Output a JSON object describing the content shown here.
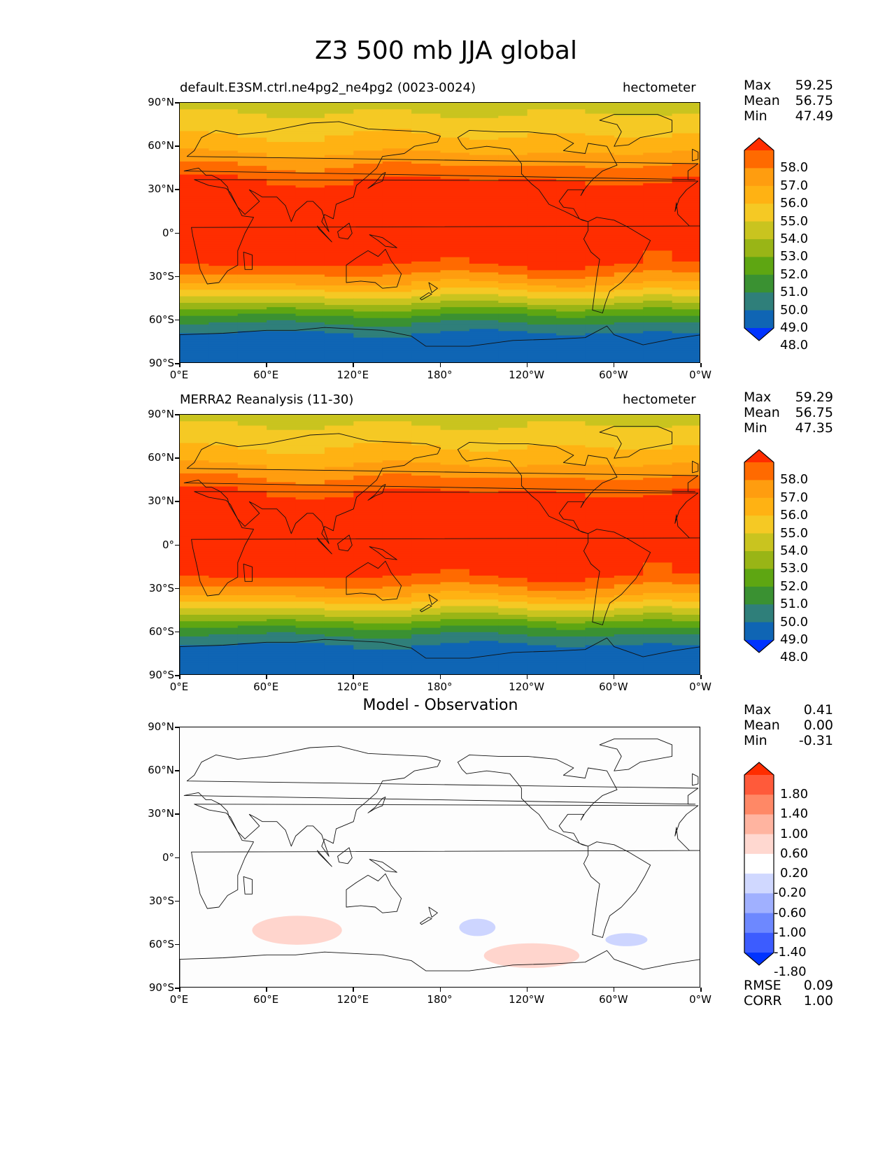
{
  "title": "Z3 500 mb JJA global",
  "lat_labels": [
    "90°N",
    "60°N",
    "30°N",
    "0°",
    "30°S",
    "60°S",
    "90°S"
  ],
  "lon_labels": [
    "0°E",
    "60°E",
    "120°E",
    "180°",
    "120°W",
    "60°W",
    "0°W"
  ],
  "panels": [
    {
      "title_left": "default.E3SM.ctrl.ne4pg2_ne4pg2 (0023-0024)",
      "title_right": "hectometer",
      "title_center": "",
      "stats": [
        {
          "label": "Max",
          "value": "59.25"
        },
        {
          "label": "Mean",
          "value": "56.75"
        },
        {
          "label": "Min",
          "value": "47.49"
        }
      ],
      "colorbar_labels": [
        "58.0",
        "57.0",
        "56.0",
        "55.0",
        "54.0",
        "53.0",
        "52.0",
        "51.0",
        "50.0",
        "49.0",
        "48.0"
      ],
      "colorbar_colors": [
        "#ff2d00",
        "#ff6a00",
        "#ff9d0f",
        "#ffb213",
        "#f5c924",
        "#c9c41f",
        "#99b516",
        "#5ea612",
        "#3a9132",
        "#2f7f7a",
        "#0f65b4",
        "#0033ff"
      ],
      "extra": []
    },
    {
      "title_left": "MERRA2 Reanalysis (11-30)",
      "title_right": "hectometer",
      "title_center": "",
      "stats": [
        {
          "label": "Max",
          "value": "59.29"
        },
        {
          "label": "Mean",
          "value": "56.75"
        },
        {
          "label": "Min",
          "value": "47.35"
        }
      ],
      "colorbar_labels": [
        "58.0",
        "57.0",
        "56.0",
        "55.0",
        "54.0",
        "53.0",
        "52.0",
        "51.0",
        "50.0",
        "49.0",
        "48.0"
      ],
      "colorbar_colors": [
        "#ff2d00",
        "#ff6a00",
        "#ff9d0f",
        "#ffb213",
        "#f5c924",
        "#c9c41f",
        "#99b516",
        "#5ea612",
        "#3a9132",
        "#2f7f7a",
        "#0f65b4",
        "#0033ff"
      ],
      "extra": []
    },
    {
      "title_left": "",
      "title_right": "",
      "title_center": "Model - Observation",
      "stats": [
        {
          "label": "Max",
          "value": "0.41"
        },
        {
          "label": "Mean",
          "value": "0.00"
        },
        {
          "label": "Min",
          "value": "-0.31"
        }
      ],
      "colorbar_labels": [
        "1.80",
        "1.40",
        "1.00",
        "0.60",
        "0.20",
        "-0.20",
        "-0.60",
        "-1.00",
        "-1.40",
        "-1.80"
      ],
      "colorbar_colors": [
        "#ff2d00",
        "#ff5a3a",
        "#ff8866",
        "#ffb4a0",
        "#ffd8d0",
        "#ffffff",
        "#d0d8ff",
        "#a0b0ff",
        "#6d88ff",
        "#3c5cff",
        "#0033ff"
      ],
      "extra": [
        {
          "label": "RMSE",
          "value": "0.09"
        },
        {
          "label": "CORR",
          "value": "1.00"
        }
      ]
    }
  ],
  "chart_data": [
    {
      "type": "heatmap",
      "title": "default.E3SM.ctrl.ne4pg2_ne4pg2 (0023-0024)",
      "units": "hectometer",
      "field": "Z3 500 mb JJA",
      "xlim": [
        0,
        360
      ],
      "ylim": [
        -90,
        90
      ],
      "contour_levels": [
        48.0,
        49.0,
        50.0,
        51.0,
        52.0,
        53.0,
        54.0,
        55.0,
        56.0,
        57.0,
        58.0
      ],
      "zonal_profile": [
        {
          "lat": 90,
          "value": 53.5
        },
        {
          "lat": 75,
          "value": 54.5
        },
        {
          "lat": 60,
          "value": 55.5
        },
        {
          "lat": 45,
          "value": 57.2
        },
        {
          "lat": 30,
          "value": 58.6
        },
        {
          "lat": 0,
          "value": 58.8
        },
        {
          "lat": -20,
          "value": 58.3
        },
        {
          "lat": -35,
          "value": 56.0
        },
        {
          "lat": -50,
          "value": 52.5
        },
        {
          "lat": -60,
          "value": 50.3
        },
        {
          "lat": -70,
          "value": 48.8
        },
        {
          "lat": -85,
          "value": 48.3
        }
      ],
      "max": 59.25,
      "mean": 56.75,
      "min": 47.49
    },
    {
      "type": "heatmap",
      "title": "MERRA2 Reanalysis (11-30)",
      "units": "hectometer",
      "field": "Z3 500 mb JJA",
      "xlim": [
        0,
        360
      ],
      "ylim": [
        -90,
        90
      ],
      "contour_levels": [
        48.0,
        49.0,
        50.0,
        51.0,
        52.0,
        53.0,
        54.0,
        55.0,
        56.0,
        57.0,
        58.0
      ],
      "zonal_profile": [
        {
          "lat": 90,
          "value": 53.5
        },
        {
          "lat": 75,
          "value": 54.5
        },
        {
          "lat": 60,
          "value": 55.5
        },
        {
          "lat": 45,
          "value": 57.2
        },
        {
          "lat": 30,
          "value": 58.6
        },
        {
          "lat": 0,
          "value": 58.8
        },
        {
          "lat": -20,
          "value": 58.3
        },
        {
          "lat": -35,
          "value": 56.0
        },
        {
          "lat": -50,
          "value": 52.5
        },
        {
          "lat": -60,
          "value": 50.3
        },
        {
          "lat": -70,
          "value": 48.8
        },
        {
          "lat": -85,
          "value": 48.3
        }
      ],
      "max": 59.29,
      "mean": 56.75,
      "min": 47.35
    },
    {
      "type": "heatmap",
      "title": "Model - Observation",
      "xlim": [
        0,
        360
      ],
      "ylim": [
        -90,
        90
      ],
      "contour_levels": [
        -1.8,
        -1.4,
        -1.0,
        -0.6,
        -0.2,
        0.2,
        0.6,
        1.0,
        1.4,
        1.8
      ],
      "anomaly_regions": [
        {
          "lon_range": [
            50,
            112
          ],
          "lat_range": [
            -60,
            -40
          ],
          "bin": "0.20 to 0.60"
        },
        {
          "lon_range": [
            193,
            218
          ],
          "lat_range": [
            -54,
            -42
          ],
          "bin": "-0.60 to -0.20"
        },
        {
          "lon_range": [
            210,
            276
          ],
          "lat_range": [
            -76,
            -59
          ],
          "bin": "0.20 to 0.60"
        },
        {
          "lon_range": [
            294,
            323
          ],
          "lat_range": [
            -61,
            -52
          ],
          "bin": "-0.60 to -0.20"
        }
      ],
      "max": 0.41,
      "mean": 0.0,
      "min": -0.31,
      "rmse": 0.09,
      "corr": 1.0
    }
  ]
}
